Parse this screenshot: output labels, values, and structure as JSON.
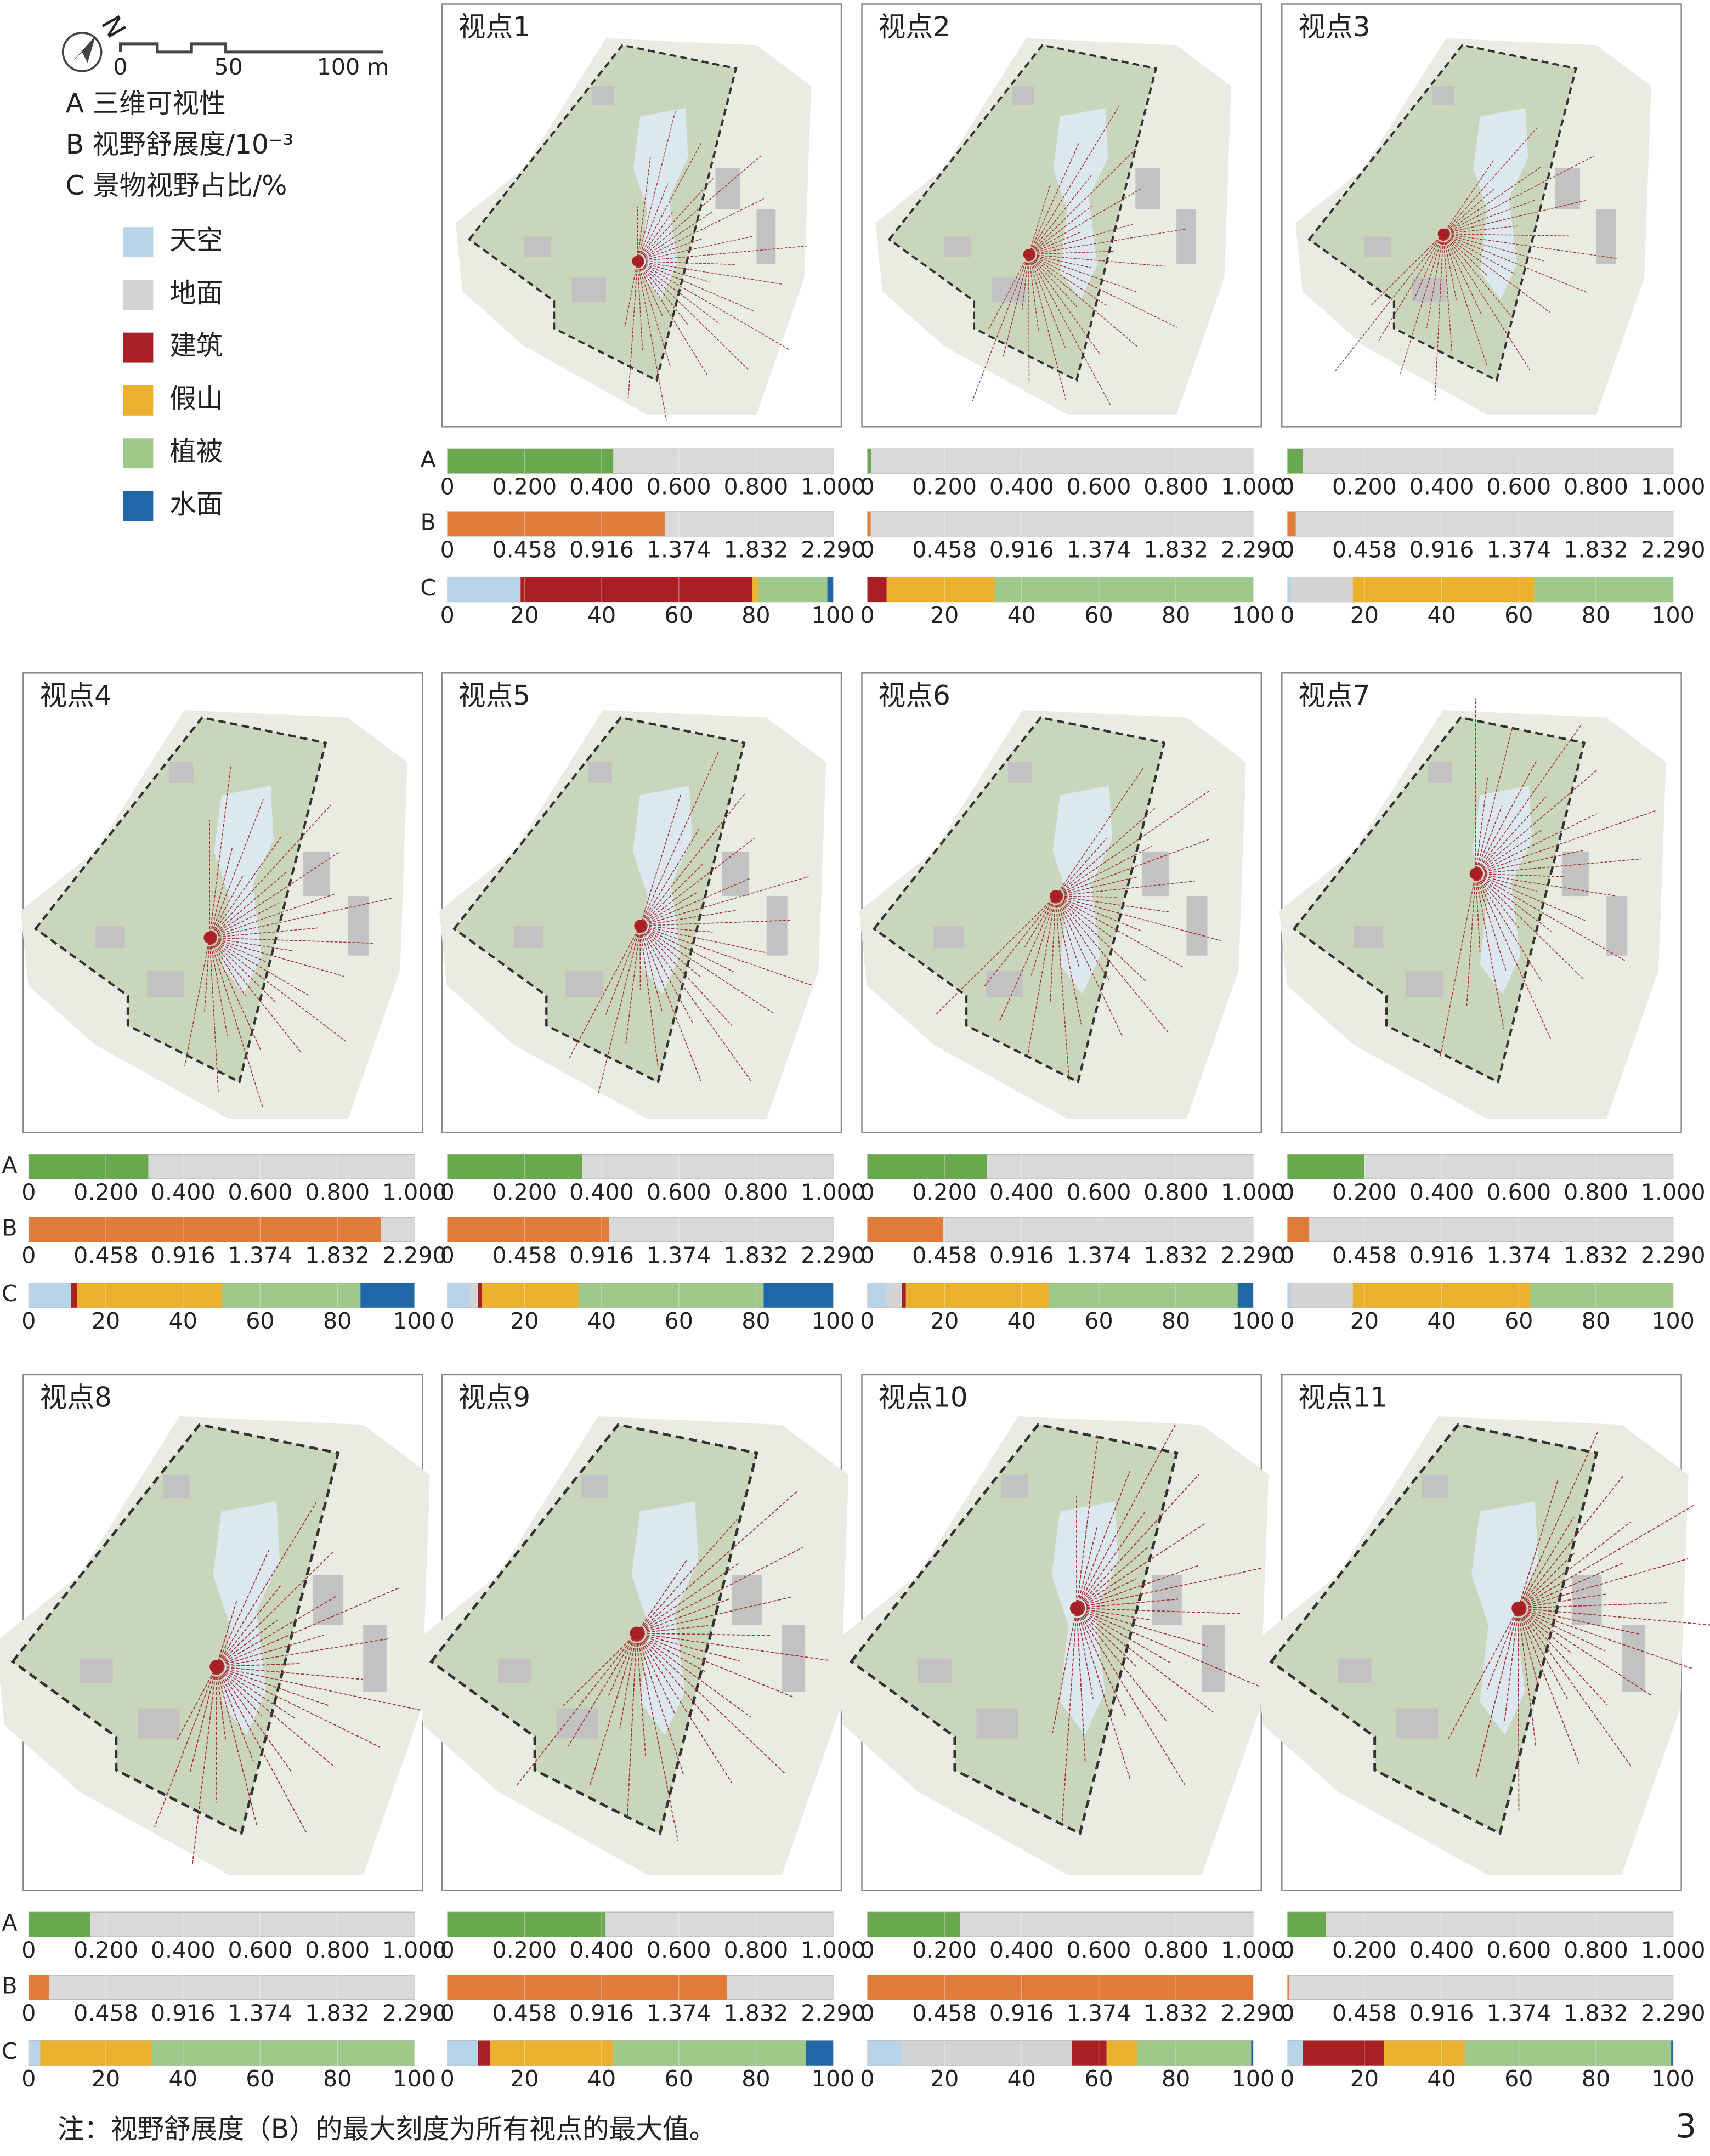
{
  "legend": {
    "north": "N",
    "scale_labels": [
      "0",
      "50",
      "100 m"
    ],
    "lines": [
      "A 三维可视性",
      "B 视野舒展度/10⁻³",
      "C 景物视野占比/%"
    ],
    "items": [
      {
        "name": "天空",
        "color": "#b9d3e8"
      },
      {
        "name": "地面",
        "color": "#d4d4d4"
      },
      {
        "name": "建筑",
        "color": "#a81f24"
      },
      {
        "name": "假山",
        "color": "#ebb12e"
      },
      {
        "name": "植被",
        "color": "#9fc98a"
      },
      {
        "name": "水面",
        "color": "#2067a8"
      }
    ]
  },
  "row_labels": [
    "A",
    "B",
    "C"
  ],
  "bar_background": "#d9d9d9",
  "chart_data": [
    {
      "type": "stacked-bar-set",
      "title": "视点1",
      "rows": [
        {
          "xlim": [
            0,
            1
          ],
          "xticks": [
            0,
            {
              "value": 0.2,
              "label": "0.200"
            },
            {
              "value": 0.4,
              "label": "0.400"
            },
            {
              "value": 0.6,
              "label": "0.600"
            },
            {
              "value": 0.8,
              "label": "0.800"
            },
            {
              "value": 1,
              "label": "1.000"
            }
          ],
          "values": [
            0.43
          ],
          "color": "#6aa84f"
        },
        {
          "xlim": [
            0,
            2.29
          ],
          "xticks": [
            0,
            0.458,
            0.916,
            1.374,
            1.832,
            {
              "value": 2.29,
              "label": "2.290"
            }
          ],
          "values": [
            1.29
          ],
          "color": "#e07b39"
        },
        {
          "xlim": [
            0,
            100
          ],
          "xticks": [
            0,
            20,
            40,
            60,
            80,
            100
          ],
          "values": [
            19,
            0,
            60,
            1.5,
            18,
            1.5
          ]
        }
      ]
    },
    {
      "type": "stacked-bar-set",
      "title": "视点2",
      "rows": [
        {
          "xlim": [
            0,
            1
          ],
          "xticks": [
            0,
            {
              "value": 0.2,
              "label": "0.200"
            },
            {
              "value": 0.4,
              "label": "0.400"
            },
            {
              "value": 0.6,
              "label": "0.600"
            },
            {
              "value": 0.8,
              "label": "0.800"
            },
            {
              "value": 1,
              "label": "1.000"
            }
          ],
          "values": [
            0.01
          ],
          "color": "#6aa84f"
        },
        {
          "xlim": [
            0,
            2.29
          ],
          "xticks": [
            0,
            0.458,
            0.916,
            1.374,
            1.832,
            {
              "value": 2.29,
              "label": "2.290"
            }
          ],
          "values": [
            0.02
          ],
          "color": "#e07b39"
        },
        {
          "xlim": [
            0,
            100
          ],
          "xticks": [
            0,
            20,
            40,
            60,
            80,
            100
          ],
          "values": [
            0,
            0,
            5,
            28,
            67,
            0
          ]
        }
      ]
    },
    {
      "type": "stacked-bar-set",
      "title": "视点3",
      "rows": [
        {
          "xlim": [
            0,
            1
          ],
          "xticks": [
            0,
            {
              "value": 0.2,
              "label": "0.200"
            },
            {
              "value": 0.4,
              "label": "0.400"
            },
            {
              "value": 0.6,
              "label": "0.600"
            },
            {
              "value": 0.8,
              "label": "0.800"
            },
            {
              "value": 1,
              "label": "1.000"
            }
          ],
          "values": [
            0.04
          ],
          "color": "#6aa84f"
        },
        {
          "xlim": [
            0,
            2.29
          ],
          "xticks": [
            0,
            0.458,
            0.916,
            1.374,
            1.832,
            {
              "value": 2.29,
              "label": "2.290"
            }
          ],
          "values": [
            0.05
          ],
          "color": "#e07b39"
        },
        {
          "xlim": [
            0,
            100
          ],
          "xticks": [
            0,
            20,
            40,
            60,
            80,
            100
          ],
          "values": [
            1,
            16,
            0,
            47,
            36,
            0
          ]
        }
      ]
    },
    {
      "type": "stacked-bar-set",
      "title": "视点4",
      "rows": [
        {
          "xlim": [
            0,
            1
          ],
          "xticks": [
            0,
            {
              "value": 0.2,
              "label": "0.200"
            },
            {
              "value": 0.4,
              "label": "0.400"
            },
            {
              "value": 0.6,
              "label": "0.600"
            },
            {
              "value": 0.8,
              "label": "0.800"
            },
            {
              "value": 1,
              "label": "1.000"
            }
          ],
          "values": [
            0.31
          ],
          "color": "#6aa84f"
        },
        {
          "xlim": [
            0,
            2.29
          ],
          "xticks": [
            0,
            0.458,
            0.916,
            1.374,
            1.832,
            {
              "value": 2.29,
              "label": "2.290"
            }
          ],
          "values": [
            2.09
          ],
          "color": "#e07b39"
        },
        {
          "xlim": [
            0,
            100
          ],
          "xticks": [
            0,
            20,
            40,
            60,
            80,
            100
          ],
          "values": [
            11,
            0,
            1.5,
            37.5,
            36,
            14
          ]
        }
      ]
    },
    {
      "type": "stacked-bar-set",
      "title": "视点5",
      "rows": [
        {
          "xlim": [
            0,
            1
          ],
          "xticks": [
            0,
            {
              "value": 0.2,
              "label": "0.200"
            },
            {
              "value": 0.4,
              "label": "0.400"
            },
            {
              "value": 0.6,
              "label": "0.600"
            },
            {
              "value": 0.8,
              "label": "0.800"
            },
            {
              "value": 1,
              "label": "1.000"
            }
          ],
          "values": [
            0.35
          ],
          "color": "#6aa84f"
        },
        {
          "xlim": [
            0,
            2.29
          ],
          "xticks": [
            0,
            0.458,
            0.916,
            1.374,
            1.832,
            {
              "value": 2.29,
              "label": "2.290"
            }
          ],
          "values": [
            0.96
          ],
          "color": "#e07b39"
        },
        {
          "xlim": [
            0,
            100
          ],
          "xticks": [
            0,
            20,
            40,
            60,
            80,
            100
          ],
          "values": [
            6,
            2,
            1,
            25,
            48,
            18
          ]
        }
      ]
    },
    {
      "type": "stacked-bar-set",
      "title": "视点6",
      "rows": [
        {
          "xlim": [
            0,
            1
          ],
          "xticks": [
            0,
            {
              "value": 0.2,
              "label": "0.200"
            },
            {
              "value": 0.4,
              "label": "0.400"
            },
            {
              "value": 0.6,
              "label": "0.600"
            },
            {
              "value": 0.8,
              "label": "0.800"
            },
            {
              "value": 1,
              "label": "1.000"
            }
          ],
          "values": [
            0.31
          ],
          "color": "#6aa84f"
        },
        {
          "xlim": [
            0,
            2.29
          ],
          "xticks": [
            0,
            0.458,
            0.916,
            1.374,
            1.832,
            {
              "value": 2.29,
              "label": "2.290"
            }
          ],
          "values": [
            0.45
          ],
          "color": "#e07b39"
        },
        {
          "xlim": [
            0,
            100
          ],
          "xticks": [
            0,
            20,
            40,
            60,
            80,
            100
          ],
          "values": [
            5,
            4,
            1,
            37,
            49,
            4
          ]
        }
      ]
    },
    {
      "type": "stacked-bar-set",
      "title": "视点7",
      "rows": [
        {
          "xlim": [
            0,
            1
          ],
          "xticks": [
            0,
            {
              "value": 0.2,
              "label": "0.200"
            },
            {
              "value": 0.4,
              "label": "0.400"
            },
            {
              "value": 0.6,
              "label": "0.600"
            },
            {
              "value": 0.8,
              "label": "0.800"
            },
            {
              "value": 1,
              "label": "1.000"
            }
          ],
          "values": [
            0.2
          ],
          "color": "#6aa84f"
        },
        {
          "xlim": [
            0,
            2.29
          ],
          "xticks": [
            0,
            0.458,
            0.916,
            1.374,
            1.832,
            {
              "value": 2.29,
              "label": "2.290"
            }
          ],
          "values": [
            0.13
          ],
          "color": "#e07b39"
        },
        {
          "xlim": [
            0,
            100
          ],
          "xticks": [
            0,
            20,
            40,
            60,
            80,
            100
          ],
          "values": [
            1,
            16,
            0,
            46,
            37,
            0
          ]
        }
      ]
    },
    {
      "type": "stacked-bar-set",
      "title": "视点8",
      "rows": [
        {
          "xlim": [
            0,
            1
          ],
          "xticks": [
            0,
            {
              "value": 0.2,
              "label": "0.200"
            },
            {
              "value": 0.4,
              "label": "0.400"
            },
            {
              "value": 0.6,
              "label": "0.600"
            },
            {
              "value": 0.8,
              "label": "0.800"
            },
            {
              "value": 1,
              "label": "1.000"
            }
          ],
          "values": [
            0.16
          ],
          "color": "#6aa84f"
        },
        {
          "xlim": [
            0,
            2.29
          ],
          "xticks": [
            0,
            0.458,
            0.916,
            1.374,
            1.832,
            {
              "value": 2.29,
              "label": "2.290"
            }
          ],
          "values": [
            0.12
          ],
          "color": "#e07b39"
        },
        {
          "xlim": [
            0,
            100
          ],
          "xticks": [
            0,
            20,
            40,
            60,
            80,
            100
          ],
          "values": [
            3,
            0,
            0,
            29,
            68,
            0
          ]
        }
      ]
    },
    {
      "type": "stacked-bar-set",
      "title": "视点9",
      "rows": [
        {
          "xlim": [
            0,
            1
          ],
          "xticks": [
            0,
            {
              "value": 0.2,
              "label": "0.200"
            },
            {
              "value": 0.4,
              "label": "0.400"
            },
            {
              "value": 0.6,
              "label": "0.600"
            },
            {
              "value": 0.8,
              "label": "0.800"
            },
            {
              "value": 1,
              "label": "1.000"
            }
          ],
          "values": [
            0.41
          ],
          "color": "#6aa84f"
        },
        {
          "xlim": [
            0,
            2.29
          ],
          "xticks": [
            0,
            0.458,
            0.916,
            1.374,
            1.832,
            {
              "value": 2.29,
              "label": "2.290"
            }
          ],
          "values": [
            1.66
          ],
          "color": "#e07b39"
        },
        {
          "xlim": [
            0,
            100
          ],
          "xticks": [
            0,
            20,
            40,
            60,
            80,
            100
          ],
          "values": [
            8,
            0,
            3,
            32,
            50,
            7
          ]
        }
      ]
    },
    {
      "type": "stacked-bar-set",
      "title": "视点10",
      "rows": [
        {
          "xlim": [
            0,
            1
          ],
          "xticks": [
            0,
            {
              "value": 0.2,
              "label": "0.200"
            },
            {
              "value": 0.4,
              "label": "0.400"
            },
            {
              "value": 0.6,
              "label": "0.600"
            },
            {
              "value": 0.8,
              "label": "0.800"
            },
            {
              "value": 1,
              "label": "1.000"
            }
          ],
          "values": [
            0.24
          ],
          "color": "#6aa84f"
        },
        {
          "xlim": [
            0,
            2.29
          ],
          "xticks": [
            0,
            0.458,
            0.916,
            1.374,
            1.832,
            {
              "value": 2.29,
              "label": "2.290"
            }
          ],
          "values": [
            2.29
          ],
          "color": "#e07b39"
        },
        {
          "xlim": [
            0,
            100
          ],
          "xticks": [
            0,
            20,
            40,
            60,
            80,
            100
          ],
          "values": [
            9,
            44,
            9,
            8,
            29.5,
            0.5
          ]
        }
      ]
    },
    {
      "type": "stacked-bar-set",
      "title": "视点11",
      "rows": [
        {
          "xlim": [
            0,
            1
          ],
          "xticks": [
            0,
            {
              "value": 0.2,
              "label": "0.200"
            },
            {
              "value": 0.4,
              "label": "0.400"
            },
            {
              "value": 0.6,
              "label": "0.600"
            },
            {
              "value": 0.8,
              "label": "0.800"
            },
            {
              "value": 1,
              "label": "1.000"
            }
          ],
          "values": [
            0.1
          ],
          "color": "#6aa84f"
        },
        {
          "xlim": [
            0,
            2.29
          ],
          "xticks": [
            0,
            0.458,
            0.916,
            1.374,
            1.832,
            {
              "value": 2.29,
              "label": "2.290"
            }
          ],
          "values": [
            0.01
          ],
          "color": "#e07b39"
        },
        {
          "xlim": [
            0,
            100
          ],
          "xticks": [
            0,
            20,
            40,
            60,
            80,
            100
          ],
          "values": [
            4,
            0,
            21,
            21,
            53.5,
            0.5
          ]
        }
      ]
    }
  ],
  "footnote": "注：视野舒展度（B）的最大刻度为所有视点的最大值。",
  "page_number": "3"
}
